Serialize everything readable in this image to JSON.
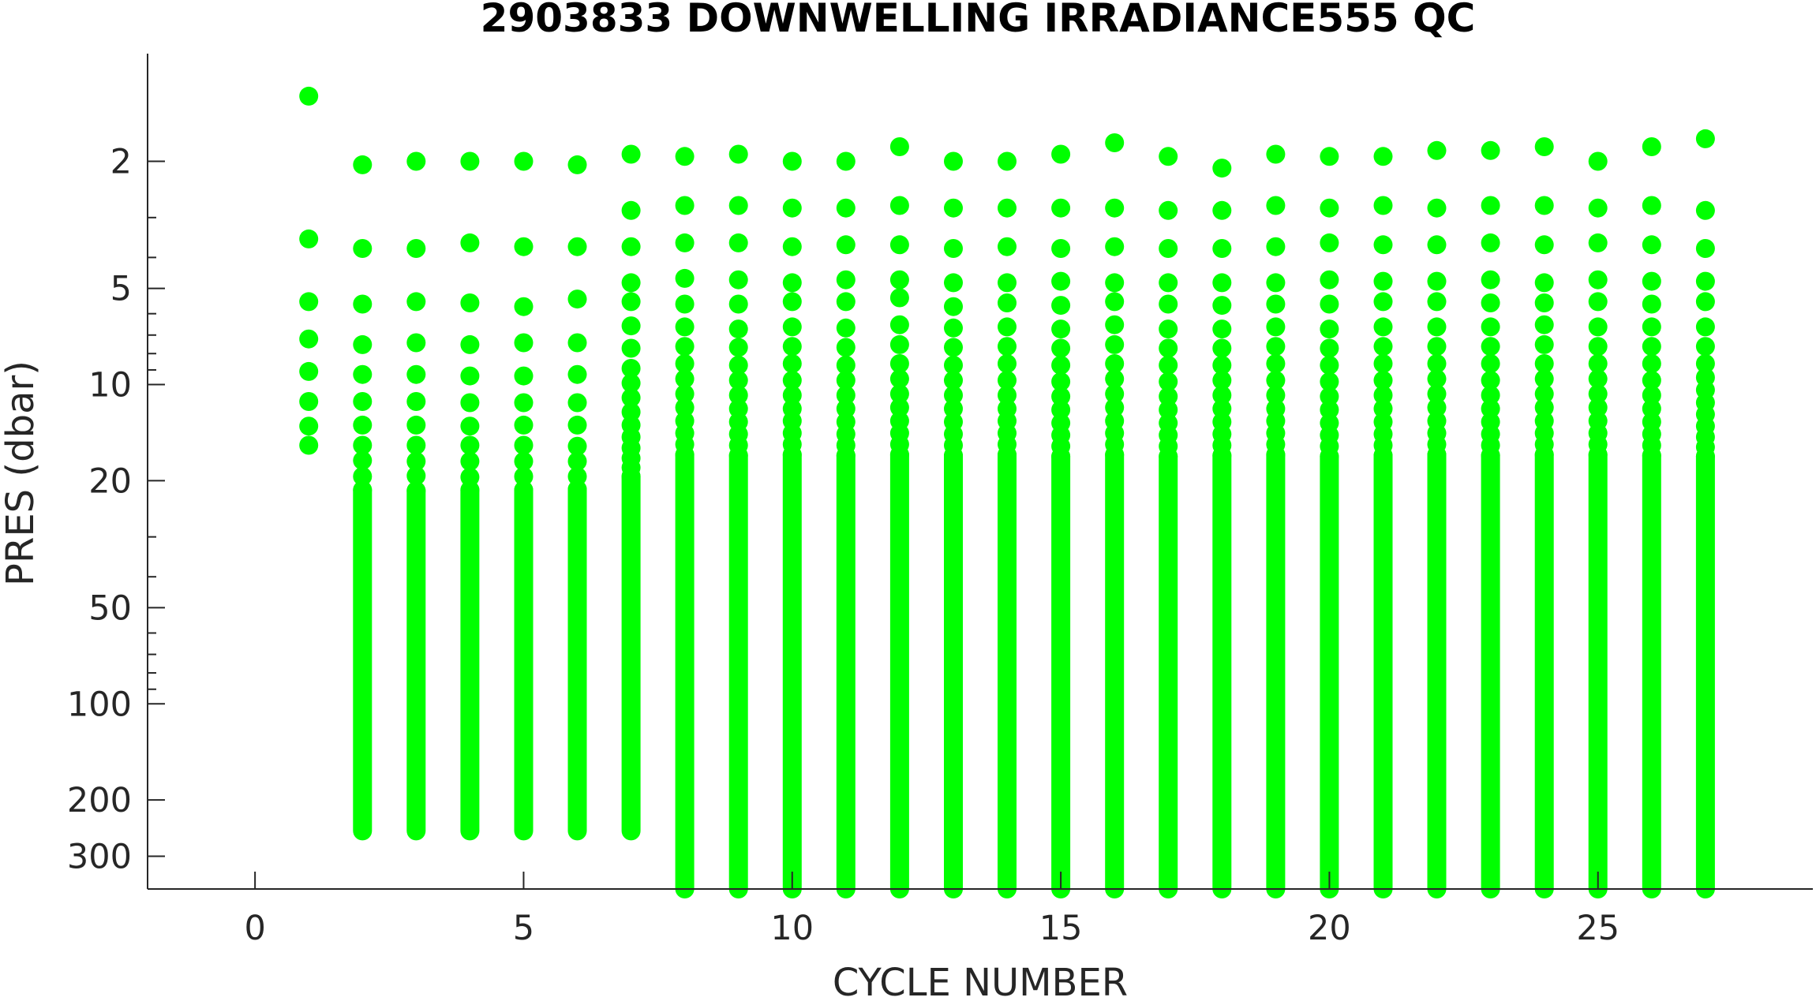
{
  "chart_data": {
    "type": "scatter",
    "title": "2903833  DOWNWELLING IRRADIANCE555 QC",
    "xlabel": "CYCLE NUMBER",
    "ylabel": "PRES (dbar)",
    "xlim": [
      -2,
      29
    ],
    "ylim": [
      0.92,
      380
    ],
    "yscale": "log",
    "yreversed": true,
    "grid": false,
    "marker_color": "#00ff00",
    "x_ticks": [
      0,
      5,
      10,
      15,
      20,
      25
    ],
    "x_tick_labels": [
      "0",
      "5",
      "10",
      "15",
      "20",
      "25"
    ],
    "y_ticks": [
      2,
      5,
      10,
      20,
      50,
      100,
      200,
      300
    ],
    "y_tick_labels": [
      "2",
      "5",
      "10",
      "20",
      "50",
      "100",
      "200",
      "300"
    ],
    "y_minor_ticks": [
      3,
      4,
      6,
      7,
      8,
      9,
      30,
      40,
      60,
      70,
      80,
      90
    ],
    "profiles": [
      {
        "cycle": 1,
        "pres": [
          1.25,
          3.5,
          5.5,
          7.2,
          9.1,
          11.3,
          13.5,
          15.5
        ]
      },
      {
        "cycle": 2,
        "max_pres": 250,
        "pres": [
          2.05,
          3.75,
          5.6,
          7.5,
          9.3,
          11.3,
          13.4,
          15.5,
          17.3,
          19.4,
          21.4
        ]
      },
      {
        "cycle": 3,
        "max_pres": 250,
        "pres": [
          2.0,
          3.75,
          5.5,
          7.4,
          9.3,
          11.3,
          13.4,
          15.5,
          17.4,
          19.3,
          21.5
        ]
      },
      {
        "cycle": 4,
        "max_pres": 250,
        "pres": [
          2.0,
          3.6,
          5.55,
          7.5,
          9.4,
          11.4,
          13.5,
          15.5,
          17.4,
          19.5,
          21.4
        ]
      },
      {
        "cycle": 5,
        "max_pres": 250,
        "pres": [
          2.0,
          3.7,
          5.7,
          7.4,
          9.4,
          11.4,
          13.4,
          15.5,
          17.4,
          19.4,
          21.4
        ]
      },
      {
        "cycle": 6,
        "max_pres": 250,
        "pres": [
          2.05,
          3.7,
          5.4,
          7.4,
          9.3,
          11.4,
          13.4,
          15.6,
          17.4,
          19.4,
          21.3
        ]
      },
      {
        "cycle": 7,
        "max_pres": 250,
        "pres": [
          1.9,
          2.85,
          3.7,
          4.8,
          5.5,
          6.55,
          7.7,
          8.9,
          9.9,
          11.0,
          12.2,
          13.4,
          14.6,
          15.8,
          17.0,
          18.2,
          19.4
        ]
      },
      {
        "cycle": 8,
        "max_pres": 380,
        "pres": [
          1.93,
          2.75,
          3.6,
          4.65,
          5.6,
          6.6,
          7.6,
          8.6,
          9.6,
          10.7,
          11.8,
          13.0,
          14.2,
          15.4,
          16.6
        ]
      },
      {
        "cycle": 9,
        "max_pres": 380,
        "pres": [
          1.9,
          2.75,
          3.6,
          4.7,
          5.6,
          6.7,
          7.65,
          8.7,
          9.7,
          10.8,
          11.9,
          13.1,
          14.3,
          15.5,
          16.7
        ]
      },
      {
        "cycle": 10,
        "max_pres": 380,
        "pres": [
          2.0,
          2.8,
          3.7,
          4.8,
          5.5,
          6.6,
          7.6,
          8.6,
          9.7,
          10.8,
          11.9,
          13.0,
          14.2,
          15.4,
          16.6
        ]
      },
      {
        "cycle": 11,
        "max_pres": 380,
        "pres": [
          2.0,
          2.8,
          3.65,
          4.7,
          5.5,
          6.65,
          7.65,
          8.7,
          9.7,
          10.8,
          11.9,
          13.1,
          14.3,
          15.5,
          16.7
        ]
      },
      {
        "cycle": 12,
        "max_pres": 380,
        "pres": [
          1.8,
          2.75,
          3.65,
          4.7,
          5.35,
          6.5,
          7.5,
          8.6,
          9.6,
          10.7,
          11.8,
          13.0,
          14.2,
          15.4,
          16.6
        ]
      },
      {
        "cycle": 13,
        "max_pres": 380,
        "pres": [
          2.0,
          2.8,
          3.75,
          4.8,
          5.7,
          6.65,
          7.65,
          8.7,
          9.7,
          10.8,
          11.9,
          13.1,
          14.3,
          15.5,
          16.7
        ]
      },
      {
        "cycle": 14,
        "max_pres": 380,
        "pres": [
          2.0,
          2.8,
          3.7,
          4.8,
          5.55,
          6.6,
          7.6,
          8.6,
          9.7,
          10.8,
          11.9,
          13.0,
          14.2,
          15.4,
          16.6
        ]
      },
      {
        "cycle": 15,
        "max_pres": 380,
        "pres": [
          1.9,
          2.8,
          3.75,
          4.75,
          5.65,
          6.7,
          7.7,
          8.7,
          9.8,
          10.9,
          12.0,
          13.2,
          14.4,
          15.6,
          16.8
        ]
      },
      {
        "cycle": 16,
        "max_pres": 380,
        "pres": [
          1.75,
          2.8,
          3.7,
          4.8,
          5.5,
          6.5,
          7.5,
          8.6,
          9.6,
          10.7,
          11.8,
          13.0,
          14.2,
          15.4,
          16.6
        ]
      },
      {
        "cycle": 17,
        "max_pres": 380,
        "pres": [
          1.93,
          2.85,
          3.75,
          4.8,
          5.6,
          6.7,
          7.7,
          8.7,
          9.8,
          10.9,
          12.0,
          13.2,
          14.4,
          15.6,
          16.8
        ]
      },
      {
        "cycle": 18,
        "max_pres": 380,
        "pres": [
          2.1,
          2.85,
          3.75,
          4.8,
          5.65,
          6.7,
          7.7,
          8.7,
          9.7,
          10.8,
          11.9,
          13.1,
          14.3,
          15.5,
          16.7
        ]
      },
      {
        "cycle": 19,
        "max_pres": 380,
        "pres": [
          1.9,
          2.75,
          3.7,
          4.8,
          5.6,
          6.6,
          7.6,
          8.6,
          9.7,
          10.8,
          11.9,
          13.0,
          14.2,
          15.4,
          16.6
        ]
      },
      {
        "cycle": 20,
        "max_pres": 380,
        "pres": [
          1.93,
          2.8,
          3.6,
          4.7,
          5.6,
          6.7,
          7.7,
          8.7,
          9.8,
          10.9,
          12.0,
          13.2,
          14.4,
          15.6,
          16.8
        ]
      },
      {
        "cycle": 21,
        "max_pres": 380,
        "pres": [
          1.93,
          2.75,
          3.65,
          4.75,
          5.5,
          6.6,
          7.6,
          8.6,
          9.7,
          10.8,
          11.9,
          13.1,
          14.3,
          15.5,
          16.7
        ]
      },
      {
        "cycle": 22,
        "max_pres": 380,
        "pres": [
          1.85,
          2.8,
          3.65,
          4.75,
          5.5,
          6.6,
          7.6,
          8.6,
          9.6,
          10.7,
          11.8,
          13.0,
          14.2,
          15.4,
          16.6
        ]
      },
      {
        "cycle": 23,
        "max_pres": 380,
        "pres": [
          1.85,
          2.75,
          3.6,
          4.7,
          5.55,
          6.6,
          7.6,
          8.6,
          9.7,
          10.8,
          11.9,
          13.1,
          14.3,
          15.5,
          16.7
        ]
      },
      {
        "cycle": 24,
        "max_pres": 380,
        "pres": [
          1.8,
          2.75,
          3.65,
          4.8,
          5.55,
          6.5,
          7.5,
          8.6,
          9.6,
          10.7,
          11.8,
          13.0,
          14.2,
          15.4,
          16.6
        ]
      },
      {
        "cycle": 25,
        "max_pres": 380,
        "pres": [
          2.0,
          2.8,
          3.6,
          4.7,
          5.5,
          6.6,
          7.6,
          8.6,
          9.6,
          10.7,
          11.8,
          13.0,
          14.2,
          15.4,
          16.6
        ]
      },
      {
        "cycle": 26,
        "max_pres": 380,
        "pres": [
          1.8,
          2.75,
          3.65,
          4.75,
          5.6,
          6.6,
          7.6,
          8.6,
          9.7,
          10.8,
          11.9,
          13.1,
          14.3,
          15.5,
          16.7
        ]
      },
      {
        "cycle": 27,
        "max_pres": 380,
        "pres": [
          1.7,
          2.85,
          3.75,
          4.75,
          5.5,
          6.6,
          7.6,
          8.6,
          9.5,
          10.4,
          11.4,
          12.4,
          13.5,
          14.6,
          15.7,
          16.8
        ]
      }
    ]
  }
}
